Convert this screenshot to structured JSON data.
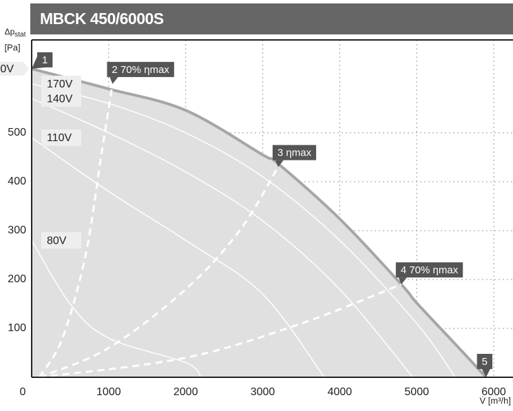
{
  "chart_data": {
    "type": "line",
    "title": "MBCK 450/6000S",
    "y_label": "Δp",
    "y_label_sub": "stat",
    "y_unit": "[Pa]",
    "x_label": "V̇ [m³/h]",
    "xlim": [
      0,
      6250
    ],
    "ylim": [
      0,
      690
    ],
    "xticks": [
      0,
      1000,
      2000,
      3000,
      4000,
      5000,
      6000
    ],
    "yticks": [
      100,
      200,
      300,
      400,
      500
    ],
    "grid": true,
    "series": [
      {
        "name": "0V",
        "role": "max",
        "start_label": "1",
        "end_label": "5",
        "color": "#a6a6a6",
        "x": [
          0,
          1000,
          2000,
          3000,
          3200,
          4000,
          4800,
          5000,
          5500,
          5900
        ],
        "values": [
          631,
          590,
          546,
          455,
          437,
          324,
          190,
          152,
          68,
          0
        ]
      },
      {
        "name": "170V",
        "color": "#ffffff",
        "x": [
          0,
          1000,
          2000,
          3000,
          4000,
          5000,
          5500
        ],
        "values": [
          600,
          560,
          500,
          410,
          280,
          110,
          0
        ]
      },
      {
        "name": "140V",
        "color": "#ffffff",
        "x": [
          0,
          1000,
          2000,
          3000,
          4000,
          4950
        ],
        "values": [
          570,
          500,
          420,
          320,
          180,
          0
        ]
      },
      {
        "name": "110V",
        "color": "#ffffff",
        "x": [
          0,
          1000,
          2000,
          3000,
          3800
        ],
        "values": [
          490,
          380,
          280,
          170,
          0
        ]
      },
      {
        "name": "80V",
        "color": "#ffffff",
        "x": [
          0,
          500,
          1000,
          2000,
          2200
        ],
        "values": [
          280,
          150,
          80,
          30,
          0
        ]
      },
      {
        "role": "efficiency",
        "end_label": "2 70% ηmax",
        "color": "#ffffff",
        "x": [
          100,
          400,
          700,
          900,
          1050
        ],
        "values": [
          0,
          80,
          250,
          450,
          600
        ]
      },
      {
        "role": "efficiency",
        "end_label": "3 ηmax",
        "color": "#ffffff",
        "x": [
          100,
          1000,
          2000,
          2700,
          3200
        ],
        "values": [
          0,
          60,
          180,
          300,
          430
        ]
      },
      {
        "role": "efficiency",
        "end_label": "4 70% ηmax",
        "color": "#ffffff",
        "x": [
          100,
          2000,
          3500,
          4800
        ],
        "values": [
          0,
          40,
          110,
          190
        ]
      }
    ]
  }
}
